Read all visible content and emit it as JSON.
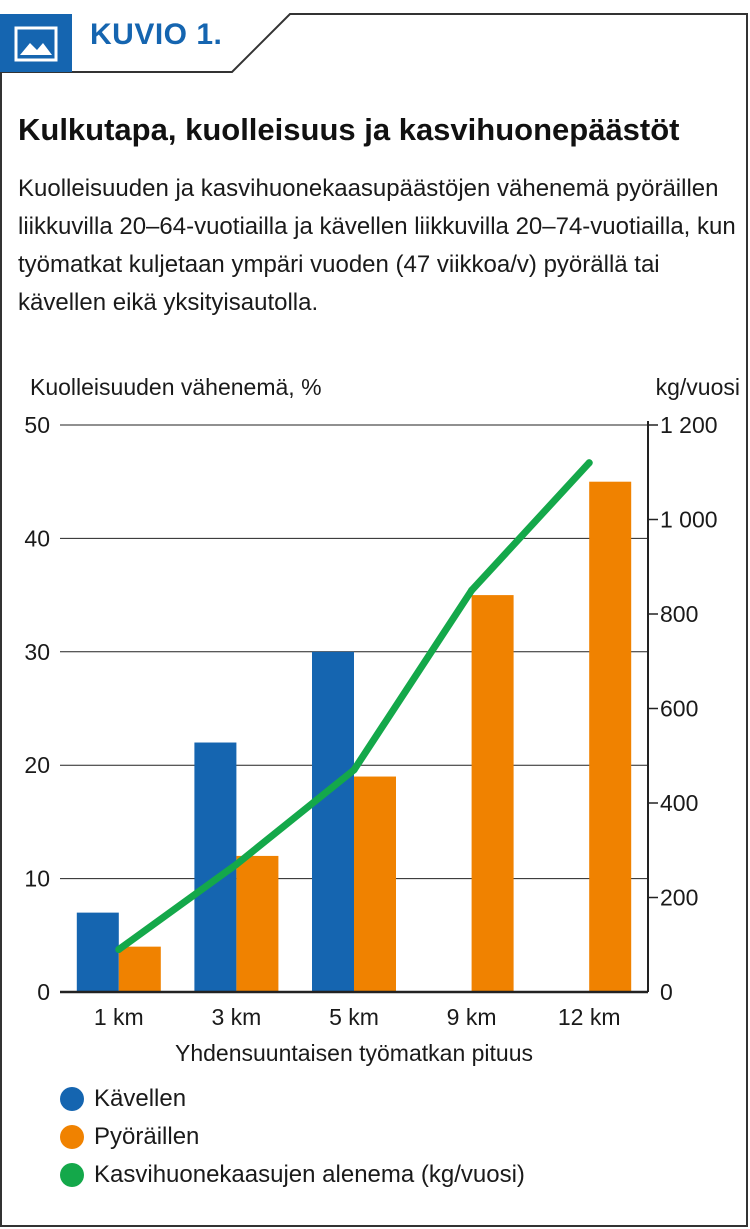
{
  "figure": {
    "tab_label": "KUVIO 1.",
    "title": "Kulkutapa, kuolleisuus ja kasvihuonepäästöt",
    "subtitle": "Kuolleisuuden ja kasvihuonekaasupäästöjen vähenemä pyöräillen liikkuvilla 20–64-vuotiailla ja kävellen liikkuvilla 20–74-vuotiailla, kun työmatkat kuljetaan ympäri vuoden (47 viikkoa/v) pyörällä tai kävellen eikä yksityisautolla."
  },
  "colors": {
    "accent": "#1565b0",
    "walking": "#1565b0",
    "cycling": "#f08200",
    "emissions": "#14a84a"
  },
  "chart_data": {
    "type": "bar",
    "categories": [
      "1 km",
      "3 km",
      "5 km",
      "9 km",
      "12 km"
    ],
    "xlabel": "Yhdensuuntaisen työmatkan pituus",
    "ylabel": "Kuolleisuuden vähenemä, %",
    "ylim": [
      0,
      50
    ],
    "yticks": [
      "0",
      "10",
      "20",
      "30",
      "40",
      "50"
    ],
    "y2label": "kg/vuosi",
    "y2lim": [
      0,
      1200
    ],
    "y2ticks": [
      "0",
      "200",
      "400",
      "600",
      "800",
      "1 000",
      "1 200"
    ],
    "grid": true,
    "legend_position": "bottom-left",
    "series": [
      {
        "name": "Kävellen",
        "type": "bar",
        "axis": "left",
        "values": [
          7,
          22,
          30,
          null,
          null
        ]
      },
      {
        "name": "Pyöräillen",
        "type": "bar",
        "axis": "left",
        "values": [
          4,
          12,
          19,
          35,
          45
        ]
      },
      {
        "name": "Kasvihuonekaasujen alenema (kg/vuosi)",
        "type": "line",
        "axis": "right",
        "values": [
          90,
          270,
          470,
          850,
          1120
        ]
      }
    ]
  }
}
